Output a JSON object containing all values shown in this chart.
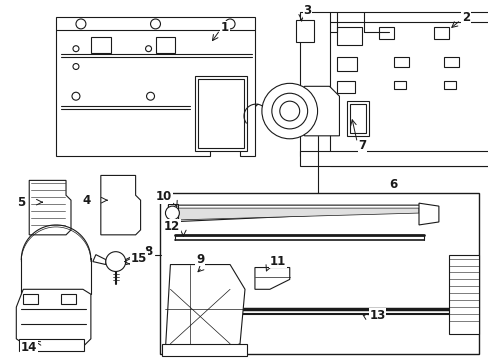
{
  "bg": "#ffffff",
  "lc": "#1a1a1a",
  "lw": 0.8,
  "fig_w": 4.89,
  "fig_h": 3.6,
  "dpi": 100,
  "fs": 8.5
}
